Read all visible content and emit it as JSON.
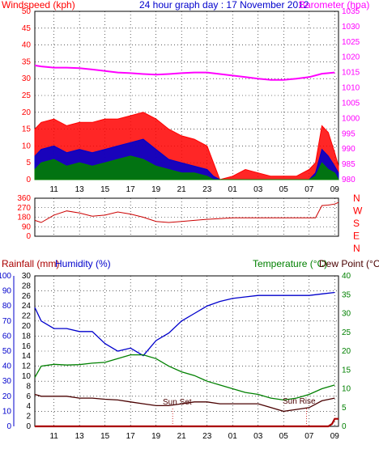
{
  "header": {
    "windspeed_label": "Windspeed (kph)",
    "title": "24 hour graph day : 17 November 2012",
    "barometer_label": "Barometer (hpa)"
  },
  "bottom_header": {
    "rainfall_label": "Rainfall (mm)",
    "humidity_label": "Humidity (%)",
    "temperature_label": "Temperature (°C)",
    "dewpoint_label": "Dew Point (°C)"
  },
  "annotations": {
    "sunset": "Sun Set",
    "sunrise": "Sun Rise"
  },
  "colors": {
    "wind_max": "#ff0000",
    "wind_avg": "#0000cc",
    "wind_min": "#008000",
    "barometer": "#ff00ff",
    "direction": "#cc0000",
    "humidity": "#0000cc",
    "temperature": "#008000",
    "dewpoint": "#4a0000",
    "rainfall": "#aa0000",
    "left_axis": "#ff0000",
    "right_axis_top": "#ff00ff",
    "left_axis_bottom": "#0000cc",
    "right_axis_bottom": "#008000",
    "grid": "#000000"
  },
  "chart_data": [
    {
      "type": "line",
      "name": "wind-barometer",
      "x_ticks": [
        "11",
        "13",
        "15",
        "17",
        "19",
        "21",
        "23",
        "01",
        "03",
        "05",
        "07",
        "09"
      ],
      "ylim_left": [
        0,
        50
      ],
      "yticks_left": [
        "0",
        "5",
        "10",
        "15",
        "20",
        "25",
        "30",
        "35",
        "40",
        "45",
        "50"
      ],
      "ylim_right": [
        980,
        1035
      ],
      "yticks_right": [
        "980",
        "985",
        "990",
        "995",
        "1000",
        "1005",
        "1010",
        "1015",
        "1020",
        "1025",
        "1030",
        "1035"
      ],
      "series": [
        {
          "key": "barometer",
          "axis": "right",
          "x": [
            9.5,
            10,
            11,
            12,
            13,
            14,
            15,
            16,
            17,
            18,
            19,
            20,
            21,
            22,
            23,
            24,
            25,
            26,
            27,
            28,
            29,
            30,
            31,
            32,
            33
          ],
          "values": [
            1017.3,
            1017.0,
            1016.6,
            1016.6,
            1016.4,
            1016.0,
            1015.5,
            1015.0,
            1014.8,
            1014.5,
            1014.3,
            1014.5,
            1014.8,
            1015.0,
            1015.0,
            1014.5,
            1014.0,
            1013.5,
            1013.0,
            1012.6,
            1012.6,
            1013.0,
            1013.5,
            1014.6,
            1015.0
          ]
        },
        {
          "key": "wind_max",
          "axis": "left",
          "x": [
            9.5,
            10,
            11,
            12,
            13,
            14,
            15,
            16,
            17,
            18,
            19,
            20,
            21,
            22,
            23,
            23.5,
            24,
            25,
            26,
            27,
            28,
            29,
            30,
            31,
            31.5,
            32,
            32.5,
            33,
            33.3
          ],
          "values": [
            15,
            17,
            18,
            16,
            17,
            17,
            18,
            18,
            19,
            20,
            18,
            15,
            13,
            12,
            10,
            5,
            0,
            1,
            3,
            2,
            1,
            1,
            1,
            3,
            5,
            16,
            14,
            8,
            4
          ]
        },
        {
          "key": "wind_avg",
          "axis": "left",
          "x": [
            9.5,
            10,
            11,
            12,
            13,
            14,
            15,
            16,
            17,
            18,
            19,
            20,
            21,
            22,
            23,
            23.5,
            24,
            25,
            30,
            31,
            31.5,
            32,
            32.5,
            33,
            33.3
          ],
          "values": [
            7,
            9,
            10,
            8,
            9,
            8,
            9,
            10,
            11,
            12,
            9,
            6,
            5,
            4,
            3,
            1,
            0,
            0,
            0,
            0,
            2,
            9,
            7,
            4,
            2
          ]
        },
        {
          "key": "wind_min",
          "axis": "left",
          "x": [
            9.5,
            10,
            11,
            12,
            13,
            14,
            15,
            16,
            17,
            18,
            19,
            20,
            21,
            22,
            23,
            23.5,
            24,
            30,
            31,
            31.5,
            32,
            32.5,
            33,
            33.3
          ],
          "values": [
            3,
            5,
            6,
            4,
            5,
            4,
            5,
            6,
            7,
            6,
            4,
            3,
            2,
            2,
            1,
            0,
            0,
            0,
            0,
            1,
            5,
            3,
            2,
            0
          ]
        }
      ]
    },
    {
      "type": "line",
      "name": "wind-direction",
      "ylim": [
        0,
        360
      ],
      "yticks": [
        "0",
        "90",
        "180",
        "270",
        "360"
      ],
      "compass": [
        "N",
        "W",
        "S",
        "E",
        "N"
      ],
      "series": [
        {
          "key": "direction",
          "x": [
            9.5,
            10,
            11,
            12,
            13,
            14,
            15,
            16,
            17,
            18,
            19,
            20,
            21,
            22,
            23,
            25,
            27,
            29,
            31,
            31.5,
            32,
            32.5,
            33,
            33.3
          ],
          "values": [
            150,
            130,
            200,
            240,
            220,
            190,
            200,
            230,
            210,
            180,
            140,
            130,
            140,
            150,
            160,
            175,
            175,
            175,
            175,
            175,
            290,
            295,
            305,
            320
          ]
        }
      ]
    },
    {
      "type": "line",
      "name": "humidity-temperature",
      "ylim_left": [
        0,
        100
      ],
      "yticks_left": [
        "0",
        "10",
        "20",
        "30",
        "40",
        "50",
        "60",
        "70",
        "80",
        "90",
        "100"
      ],
      "ylim_left_inner": [
        0,
        30
      ],
      "yticks_left_inner": [
        "0",
        "2",
        "4",
        "6",
        "8",
        "10",
        "12",
        "14",
        "16",
        "18",
        "20",
        "22",
        "24",
        "26",
        "28",
        "30"
      ],
      "ylim_right": [
        0,
        40
      ],
      "yticks_right": [
        "0",
        "5",
        "10",
        "15",
        "20",
        "25",
        "30",
        "35",
        "40"
      ],
      "series": [
        {
          "key": "humidity",
          "axis": "left",
          "x": [
            9.5,
            10,
            11,
            12,
            13,
            14,
            15,
            16,
            17,
            18,
            19,
            20,
            21,
            22,
            23,
            24,
            25,
            26,
            27,
            28,
            29,
            30,
            31,
            32,
            33
          ],
          "values": [
            79,
            70,
            65,
            65,
            63,
            63,
            55,
            50,
            52,
            47,
            57,
            62,
            70,
            75,
            80,
            83,
            85,
            86,
            87,
            87,
            87,
            87,
            87,
            88,
            89
          ]
        },
        {
          "key": "temperature",
          "axis": "right",
          "x": [
            9.5,
            10,
            11,
            12,
            13,
            14,
            15,
            16,
            17,
            18,
            19,
            20,
            21,
            22,
            23,
            24,
            25,
            26,
            27,
            28,
            29,
            30,
            31,
            32,
            33
          ],
          "values": [
            13,
            16,
            16.5,
            16.3,
            16.4,
            16.8,
            17,
            18,
            19,
            19,
            18,
            16,
            14.5,
            13.5,
            12,
            11,
            10,
            9,
            8.5,
            7.5,
            7,
            7.5,
            8.5,
            10,
            11
          ]
        },
        {
          "key": "dewpoint",
          "axis": "right",
          "x": [
            9.5,
            10,
            11,
            12,
            13,
            14,
            15,
            16,
            17,
            18,
            19,
            20,
            21,
            22,
            23,
            24,
            25,
            26,
            27,
            28,
            29,
            30,
            31,
            32,
            33
          ],
          "values": [
            8.5,
            8,
            8,
            8,
            7.5,
            7.5,
            7.2,
            7,
            6.5,
            6,
            5.5,
            5.5,
            6,
            6.5,
            6.5,
            6,
            6,
            6,
            6,
            5,
            4,
            4.5,
            5,
            6.8,
            7.5
          ]
        },
        {
          "key": "rainfall",
          "axis": "left",
          "x": [
            9.5,
            31,
            32,
            32.5,
            32.8,
            33,
            33.3
          ],
          "values": [
            0,
            0,
            0,
            0,
            0.5,
            1.5,
            1.5
          ]
        }
      ]
    }
  ]
}
